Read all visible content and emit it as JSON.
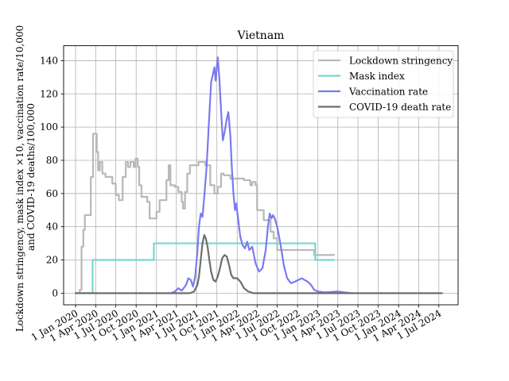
{
  "chart_data": {
    "type": "line",
    "title": "Vietnam",
    "ylabel_lines": [
      "Lockdown stringency, mask index ×10, vaccination rate/10,000",
      "and COVID-19 deaths/100,000"
    ],
    "xlabel": "",
    "ylim": [
      -7,
      149
    ],
    "xlim": [
      "2019-11-08",
      "2024-09-26"
    ],
    "grid": true,
    "legend_position": "upper right",
    "y_ticks": [
      0,
      20,
      40,
      60,
      80,
      100,
      120,
      140
    ],
    "x_ticks": [
      {
        "date": "2020-01-01",
        "label": "1 Jan 2020"
      },
      {
        "date": "2020-04-01",
        "label": "1 Apr 2020"
      },
      {
        "date": "2020-07-01",
        "label": "1 Jul 2020"
      },
      {
        "date": "2020-10-01",
        "label": "1 Oct 2020"
      },
      {
        "date": "2021-01-01",
        "label": "1 Jan 2021"
      },
      {
        "date": "2021-04-01",
        "label": "1 Apr 2021"
      },
      {
        "date": "2021-07-01",
        "label": "1 Jul 2021"
      },
      {
        "date": "2021-10-01",
        "label": "1 Oct 2021"
      },
      {
        "date": "2022-01-01",
        "label": "1 Jan 2022"
      },
      {
        "date": "2022-04-01",
        "label": "1 Apr 2022"
      },
      {
        "date": "2022-07-01",
        "label": "1 Jul 2022"
      },
      {
        "date": "2022-10-01",
        "label": "1 Oct 2022"
      },
      {
        "date": "2023-01-01",
        "label": "1 Jan 2023"
      },
      {
        "date": "2023-04-01",
        "label": "1 Apr 2023"
      },
      {
        "date": "2023-07-01",
        "label": "1 Jul 2023"
      },
      {
        "date": "2023-10-01",
        "label": "1 Oct 2023"
      },
      {
        "date": "2024-01-01",
        "label": "1 Jan 2024"
      },
      {
        "date": "2024-04-01",
        "label": "1 Apr 2024"
      },
      {
        "date": "2024-07-01",
        "label": "1 Jul 2024"
      }
    ],
    "series": [
      {
        "name": "Lockdown stringency",
        "color": "#b8b8b8",
        "step": true,
        "points": [
          [
            "2020-01-01",
            0
          ],
          [
            "2020-01-20",
            2
          ],
          [
            "2020-01-28",
            28
          ],
          [
            "2020-02-05",
            38
          ],
          [
            "2020-02-12",
            47
          ],
          [
            "2020-03-10",
            70
          ],
          [
            "2020-03-20",
            96
          ],
          [
            "2020-04-01",
            96
          ],
          [
            "2020-04-06",
            85
          ],
          [
            "2020-04-12",
            74
          ],
          [
            "2020-04-20",
            79
          ],
          [
            "2020-05-01",
            72
          ],
          [
            "2020-05-15",
            70
          ],
          [
            "2020-06-15",
            66
          ],
          [
            "2020-07-01",
            59
          ],
          [
            "2020-07-15",
            56
          ],
          [
            "2020-08-01",
            70
          ],
          [
            "2020-08-15",
            79
          ],
          [
            "2020-08-25",
            76
          ],
          [
            "2020-09-05",
            79
          ],
          [
            "2020-09-20",
            76
          ],
          [
            "2020-09-28",
            81
          ],
          [
            "2020-10-08",
            76
          ],
          [
            "2020-10-15",
            65
          ],
          [
            "2020-10-25",
            58
          ],
          [
            "2020-11-20",
            55
          ],
          [
            "2020-12-01",
            45
          ],
          [
            "2021-01-01",
            49
          ],
          [
            "2021-01-15",
            56
          ],
          [
            "2021-02-15",
            68
          ],
          [
            "2021-02-25",
            77
          ],
          [
            "2021-03-05",
            65
          ],
          [
            "2021-03-25",
            64
          ],
          [
            "2021-04-10",
            61
          ],
          [
            "2021-04-25",
            55
          ],
          [
            "2021-05-01",
            51
          ],
          [
            "2021-05-10",
            61
          ],
          [
            "2021-05-20",
            72
          ],
          [
            "2021-06-01",
            77
          ],
          [
            "2021-07-10",
            79
          ],
          [
            "2021-08-10",
            77
          ],
          [
            "2021-09-01",
            65
          ],
          [
            "2021-09-20",
            60
          ],
          [
            "2021-10-05",
            64
          ],
          [
            "2021-10-20",
            72
          ],
          [
            "2021-11-01",
            71
          ],
          [
            "2021-12-01",
            69
          ],
          [
            "2022-01-01",
            69
          ],
          [
            "2022-02-01",
            68
          ],
          [
            "2022-03-01",
            65
          ],
          [
            "2022-03-10",
            67
          ],
          [
            "2022-03-25",
            65
          ],
          [
            "2022-04-01",
            50
          ],
          [
            "2022-05-01",
            44
          ],
          [
            "2022-06-01",
            37
          ],
          [
            "2022-06-15",
            33
          ],
          [
            "2022-07-01",
            26
          ],
          [
            "2022-12-15",
            23
          ],
          [
            "2023-03-15",
            23
          ]
        ]
      },
      {
        "name": "Mask index",
        "color": "#79d6d3",
        "step": true,
        "points": [
          [
            "2020-01-01",
            0
          ],
          [
            "2020-03-18",
            20
          ],
          [
            "2020-12-20",
            30
          ],
          [
            "2022-12-20",
            20
          ],
          [
            "2023-03-15",
            20
          ]
        ]
      },
      {
        "name": "Vaccination rate",
        "color": "#7a7aef",
        "step": false,
        "points": [
          [
            "2021-03-08",
            0
          ],
          [
            "2021-03-25",
            1
          ],
          [
            "2021-04-10",
            3
          ],
          [
            "2021-04-25",
            1.5
          ],
          [
            "2021-05-15",
            5
          ],
          [
            "2021-05-25",
            9
          ],
          [
            "2021-06-05",
            8
          ],
          [
            "2021-06-15",
            4
          ],
          [
            "2021-06-25",
            10
          ],
          [
            "2021-07-05",
            25
          ],
          [
            "2021-07-12",
            40
          ],
          [
            "2021-07-20",
            48
          ],
          [
            "2021-07-28",
            46
          ],
          [
            "2021-08-05",
            58
          ],
          [
            "2021-08-15",
            75
          ],
          [
            "2021-08-25",
            100
          ],
          [
            "2021-09-05",
            127
          ],
          [
            "2021-09-15",
            133
          ],
          [
            "2021-09-20",
            136
          ],
          [
            "2021-09-25",
            128
          ],
          [
            "2021-10-05",
            142
          ],
          [
            "2021-10-12",
            130
          ],
          [
            "2021-10-20",
            110
          ],
          [
            "2021-10-28",
            92
          ],
          [
            "2021-11-05",
            97
          ],
          [
            "2021-11-15",
            105
          ],
          [
            "2021-11-22",
            109
          ],
          [
            "2021-12-01",
            95
          ],
          [
            "2021-12-08",
            75
          ],
          [
            "2021-12-15",
            60
          ],
          [
            "2021-12-22",
            50
          ],
          [
            "2021-12-28",
            54
          ],
          [
            "2022-01-05",
            45
          ],
          [
            "2022-01-15",
            34
          ],
          [
            "2022-01-25",
            29
          ],
          [
            "2022-02-05",
            27
          ],
          [
            "2022-02-15",
            31
          ],
          [
            "2022-02-25",
            26
          ],
          [
            "2022-03-10",
            28
          ],
          [
            "2022-03-25",
            18
          ],
          [
            "2022-04-10",
            13
          ],
          [
            "2022-04-25",
            15
          ],
          [
            "2022-05-10",
            26
          ],
          [
            "2022-05-20",
            40
          ],
          [
            "2022-05-28",
            48
          ],
          [
            "2022-06-05",
            45
          ],
          [
            "2022-06-12",
            47
          ],
          [
            "2022-06-20",
            45
          ],
          [
            "2022-07-01",
            40
          ],
          [
            "2022-07-15",
            30
          ],
          [
            "2022-08-01",
            16
          ],
          [
            "2022-08-15",
            9
          ],
          [
            "2022-09-01",
            6
          ],
          [
            "2022-09-20",
            7
          ],
          [
            "2022-10-05",
            8
          ],
          [
            "2022-10-20",
            9
          ],
          [
            "2022-11-01",
            8
          ],
          [
            "2022-11-15",
            7
          ],
          [
            "2022-12-01",
            5
          ],
          [
            "2022-12-15",
            2
          ],
          [
            "2023-01-01",
            1
          ],
          [
            "2023-02-01",
            0.5
          ],
          [
            "2023-04-01",
            1
          ],
          [
            "2023-05-01",
            0.5
          ],
          [
            "2023-06-01",
            0
          ]
        ]
      },
      {
        "name": "COVID-19 death rate",
        "color": "#6e6e6e",
        "step": false,
        "points": [
          [
            "2020-01-01",
            0
          ],
          [
            "2021-06-01",
            0
          ],
          [
            "2021-06-20",
            1
          ],
          [
            "2021-07-05",
            5
          ],
          [
            "2021-07-12",
            10
          ],
          [
            "2021-07-20",
            20
          ],
          [
            "2021-07-28",
            30
          ],
          [
            "2021-08-05",
            35
          ],
          [
            "2021-08-12",
            33
          ],
          [
            "2021-08-20",
            28
          ],
          [
            "2021-08-28",
            20
          ],
          [
            "2021-09-05",
            13
          ],
          [
            "2021-09-15",
            8
          ],
          [
            "2021-09-25",
            7
          ],
          [
            "2021-10-05",
            10
          ],
          [
            "2021-10-15",
            15
          ],
          [
            "2021-10-25",
            21
          ],
          [
            "2021-11-05",
            23
          ],
          [
            "2021-11-15",
            22
          ],
          [
            "2021-11-25",
            17
          ],
          [
            "2021-12-05",
            11
          ],
          [
            "2021-12-15",
            9
          ],
          [
            "2022-01-01",
            9
          ],
          [
            "2022-01-15",
            7
          ],
          [
            "2022-02-01",
            3
          ],
          [
            "2022-02-20",
            1
          ],
          [
            "2022-03-15",
            0
          ],
          [
            "2024-07-15",
            0
          ]
        ]
      }
    ]
  }
}
